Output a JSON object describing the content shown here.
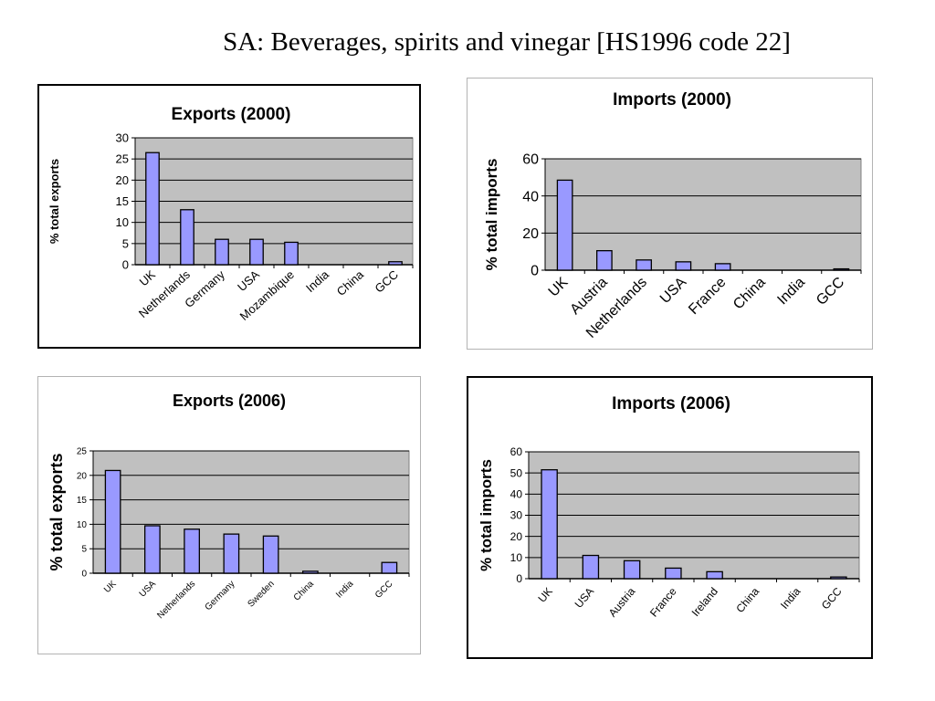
{
  "slide_title": "SA: Beverages, spirits and vinegar [HS1996 code 22]",
  "colors": {
    "bar_fill": "#9999ff",
    "bar_stroke": "#000000",
    "plot_bg": "#c0c0c0",
    "grid": "#000000"
  },
  "chart_data": [
    {
      "type": "bar",
      "title": "Exports (2000)",
      "ylabel": "% total exports",
      "categories": [
        "UK",
        "Netherlands",
        "Germany",
        "USA",
        "Mozambique",
        "India",
        "China",
        "GCC"
      ],
      "values": [
        26.5,
        13,
        6,
        6,
        5.3,
        0,
        0,
        0.7
      ],
      "ylim": [
        0,
        30
      ],
      "yticks": [
        0,
        5,
        10,
        15,
        20,
        25,
        30
      ],
      "grid": true,
      "legend": "none"
    },
    {
      "type": "bar",
      "title": "Imports (2000)",
      "ylabel": "% total imports",
      "categories": [
        "UK",
        "Austria",
        "Netherlands",
        "USA",
        "France",
        "China",
        "India",
        "GCC"
      ],
      "values": [
        48.5,
        10.5,
        5.5,
        4.5,
        3.5,
        0,
        0,
        0.7
      ],
      "ylim": [
        0,
        60
      ],
      "yticks": [
        0,
        20,
        40,
        60
      ],
      "grid": true,
      "legend": "none"
    },
    {
      "type": "bar",
      "title": "Exports (2006)",
      "ylabel": "% total exports",
      "categories": [
        "UK",
        "USA",
        "Netherlands",
        "Germany",
        "Sweden",
        "China",
        "India",
        "GCC"
      ],
      "values": [
        21,
        9.7,
        9,
        8,
        7.6,
        0.4,
        0,
        2.2
      ],
      "ylim": [
        0,
        25
      ],
      "yticks": [
        0,
        5,
        10,
        15,
        20,
        25
      ],
      "grid": true,
      "legend": "none"
    },
    {
      "type": "bar",
      "title": "Imports (2006)",
      "ylabel": "% total imports",
      "categories": [
        "UK",
        "USA",
        "Austria",
        "France",
        "Ireland",
        "China",
        "India",
        "GCC"
      ],
      "values": [
        51.5,
        11,
        8.5,
        5,
        3.3,
        0,
        0,
        0.8
      ],
      "ylim": [
        0,
        60
      ],
      "yticks": [
        0,
        10,
        20,
        30,
        40,
        50,
        60
      ],
      "grid": true,
      "legend": "none"
    }
  ]
}
